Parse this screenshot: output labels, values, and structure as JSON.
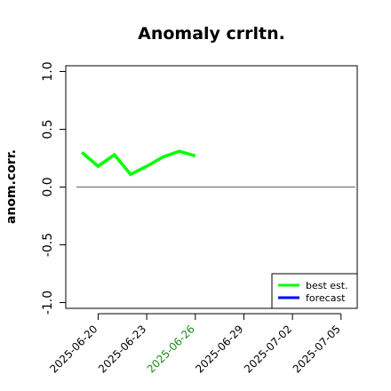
{
  "chart_data": {
    "type": "line",
    "title": "Anomaly crrltn.",
    "ylabel": "anom.corr.",
    "xlabel": "",
    "ylim": [
      -1.05,
      1.05
    ],
    "yticks": [
      "-1.0",
      "-0.5",
      "0.0",
      "0.5",
      "1.0"
    ],
    "ytick_values": [
      -1.0,
      -0.5,
      0.0,
      0.5,
      1.0
    ],
    "xlim": [
      "2025-06-18",
      "2025-07-06"
    ],
    "xticks": [
      "2025-06-20",
      "2025-06-23",
      "2025-06-26",
      "2025-06-29",
      "2025-07-02",
      "2025-07-05"
    ],
    "highlight_xtick": "2025-06-26",
    "highlight_color": "#1a8a1a",
    "reference_line": {
      "y": 0.0,
      "x_start": "2025-06-18",
      "x_end": "2025-07-05",
      "color": "#777777"
    },
    "series": [
      {
        "name": "best est.",
        "color": "#00ff00",
        "x": [
          "2025-06-19",
          "2025-06-20",
          "2025-06-21",
          "2025-06-22",
          "2025-06-23",
          "2025-06-24",
          "2025-06-25",
          "2025-06-26"
        ],
        "values": [
          0.3,
          0.18,
          0.28,
          0.11,
          0.18,
          0.26,
          0.31,
          0.27
        ]
      },
      {
        "name": "forecast",
        "color": "#0000ff",
        "x": [],
        "values": []
      }
    ],
    "legend": {
      "position": "bottom-right"
    },
    "grid": false
  }
}
